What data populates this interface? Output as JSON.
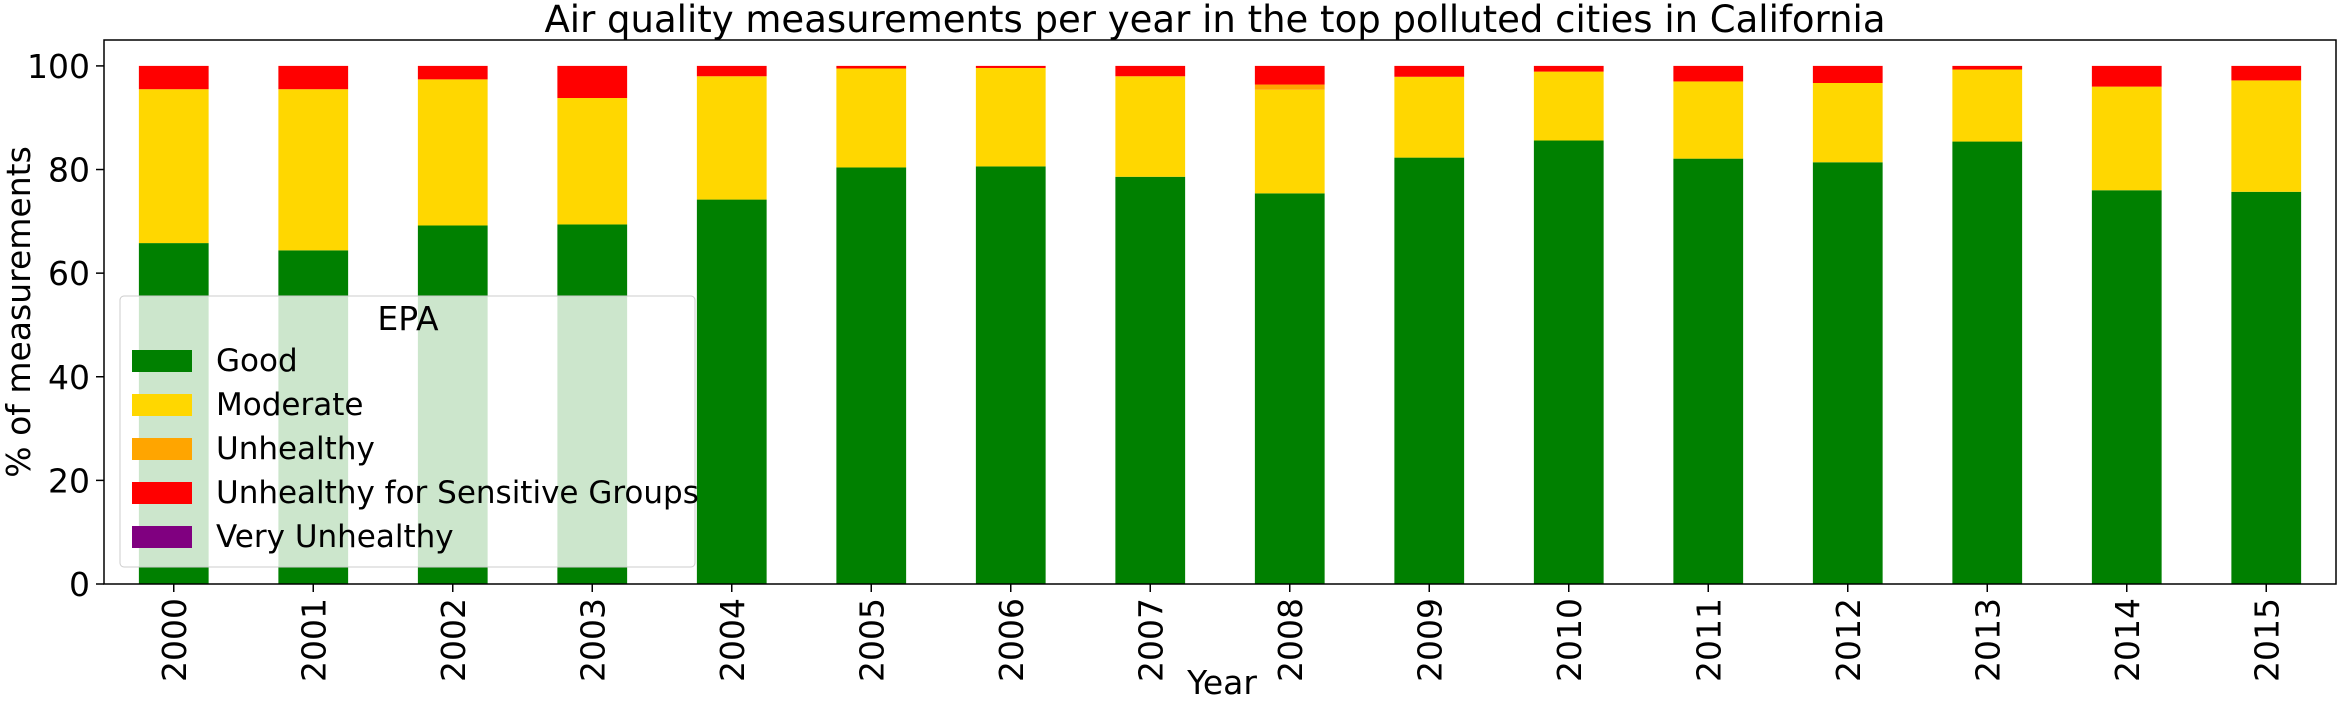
{
  "chart_data": {
    "type": "bar",
    "stacked": true,
    "title": "Air quality measurements per year in the top polluted cities in California",
    "xlabel": "Year",
    "ylabel": "% of measurements",
    "ylim": [
      0,
      105
    ],
    "yticks": [
      0,
      20,
      40,
      60,
      80,
      100
    ],
    "grid": false,
    "categories": [
      "2000",
      "2001",
      "2002",
      "2003",
      "2004",
      "2005",
      "2006",
      "2007",
      "2008",
      "2009",
      "2010",
      "2011",
      "2012",
      "2013",
      "2014",
      "2015"
    ],
    "legend": {
      "title": "EPA",
      "placement": "lower-left"
    },
    "series": [
      {
        "name": "Good",
        "color": "#008000",
        "values": [
          65.8,
          64.4,
          69.2,
          69.4,
          74.2,
          80.4,
          80.6,
          78.6,
          75.4,
          82.3,
          85.6,
          82.1,
          81.4,
          85.4,
          76.0,
          75.7
        ]
      },
      {
        "name": "Moderate",
        "color": "#FFD700",
        "values": [
          29.7,
          31.1,
          28.2,
          24.4,
          23.8,
          19.1,
          19.0,
          19.4,
          20.0,
          15.6,
          13.3,
          14.9,
          15.3,
          13.9,
          20.0,
          21.5
        ]
      },
      {
        "name": "Unhealthy",
        "color": "#FFA500",
        "values": [
          0,
          0,
          0,
          0,
          0,
          0,
          0,
          0,
          1.0,
          0,
          0,
          0,
          0,
          0,
          0,
          0
        ]
      },
      {
        "name": "Unhealthy for Sensitive Groups",
        "color": "#FF0000",
        "values": [
          4.5,
          4.5,
          2.6,
          6.2,
          2.0,
          0.5,
          0.4,
          2.0,
          3.6,
          2.1,
          1.1,
          3.0,
          3.3,
          0.7,
          4.0,
          2.8
        ]
      },
      {
        "name": "Very Unhealthy",
        "color": "#800080",
        "values": [
          0,
          0,
          0,
          0,
          0,
          0,
          0,
          0,
          0,
          0,
          0,
          0,
          0,
          0,
          0,
          0
        ]
      }
    ]
  }
}
